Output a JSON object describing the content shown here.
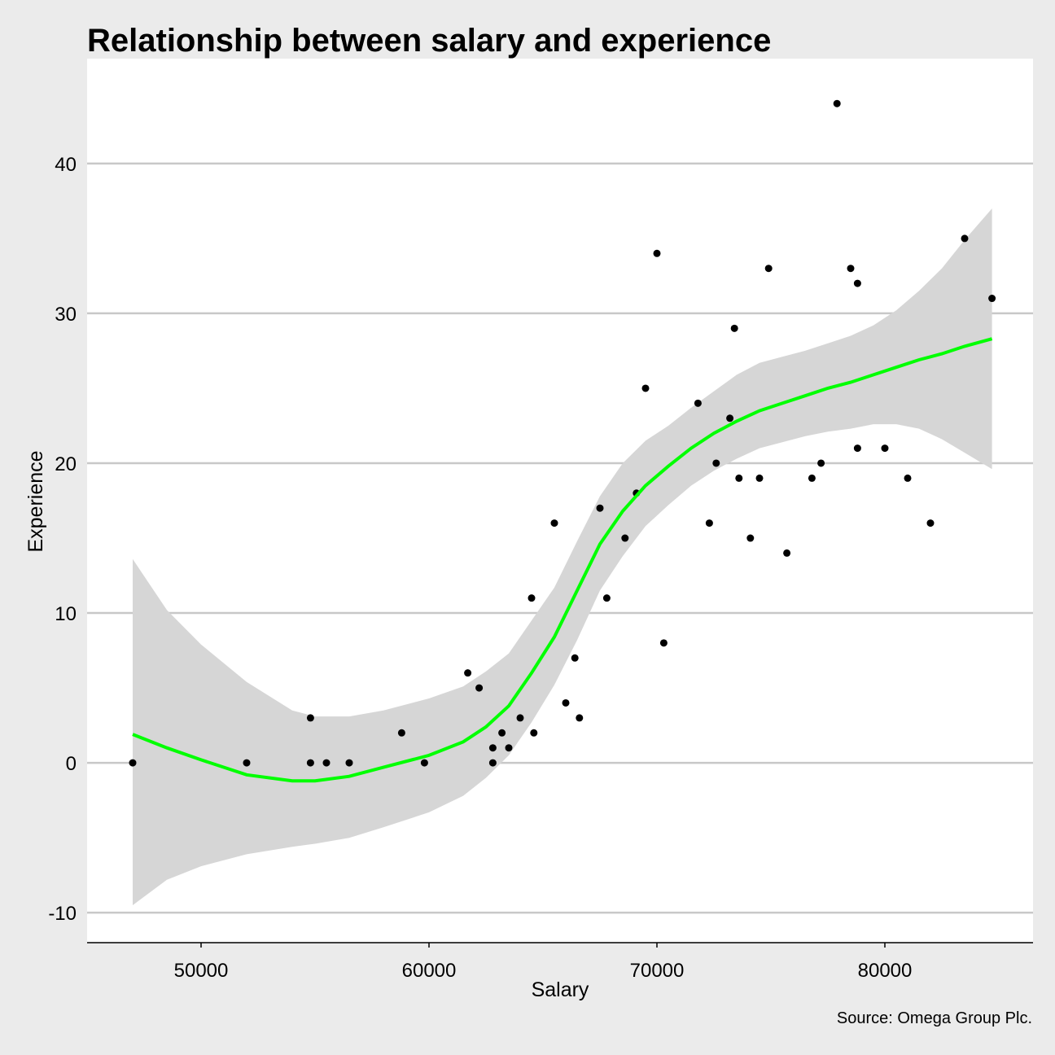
{
  "colors": {
    "background": "#ebebeb",
    "panel": "#ffffff",
    "grid": "#c8c8c8",
    "ribbon": "#d6d6d6",
    "smooth_line": "#00ff00",
    "points": "#000000"
  },
  "chart_data": {
    "type": "scatter",
    "title": "Relationship between salary and experience",
    "xlabel": "Salary",
    "ylabel": "Experience",
    "caption": "Source: Omega Group Plc.",
    "xlim": [
      45000,
      86500
    ],
    "ylim": [
      -12,
      47
    ],
    "x_ticks": [
      50000,
      60000,
      70000,
      80000
    ],
    "y_ticks": [
      -10,
      0,
      10,
      20,
      30,
      40
    ],
    "grid": "horizontal major",
    "points": [
      {
        "x": 47000,
        "y": 0
      },
      {
        "x": 52000,
        "y": 0
      },
      {
        "x": 54800,
        "y": 3
      },
      {
        "x": 54800,
        "y": 0
      },
      {
        "x": 55500,
        "y": 0
      },
      {
        "x": 56500,
        "y": 0
      },
      {
        "x": 58800,
        "y": 2
      },
      {
        "x": 59800,
        "y": 0
      },
      {
        "x": 61700,
        "y": 6
      },
      {
        "x": 62200,
        "y": 5
      },
      {
        "x": 62800,
        "y": 1
      },
      {
        "x": 62800,
        "y": 0
      },
      {
        "x": 63200,
        "y": 2
      },
      {
        "x": 63500,
        "y": 1
      },
      {
        "x": 64000,
        "y": 3
      },
      {
        "x": 64500,
        "y": 11
      },
      {
        "x": 64600,
        "y": 2
      },
      {
        "x": 65500,
        "y": 16
      },
      {
        "x": 66000,
        "y": 4
      },
      {
        "x": 66400,
        "y": 7
      },
      {
        "x": 66600,
        "y": 3
      },
      {
        "x": 67500,
        "y": 17
      },
      {
        "x": 67800,
        "y": 11
      },
      {
        "x": 68600,
        "y": 15
      },
      {
        "x": 69100,
        "y": 18
      },
      {
        "x": 69500,
        "y": 25
      },
      {
        "x": 70000,
        "y": 34
      },
      {
        "x": 70300,
        "y": 8
      },
      {
        "x": 71800,
        "y": 24
      },
      {
        "x": 72300,
        "y": 16
      },
      {
        "x": 72600,
        "y": 20
      },
      {
        "x": 73200,
        "y": 23
      },
      {
        "x": 73400,
        "y": 29
      },
      {
        "x": 73600,
        "y": 19
      },
      {
        "x": 74100,
        "y": 15
      },
      {
        "x": 74500,
        "y": 19
      },
      {
        "x": 74900,
        "y": 33
      },
      {
        "x": 75700,
        "y": 14
      },
      {
        "x": 76800,
        "y": 19
      },
      {
        "x": 77200,
        "y": 20
      },
      {
        "x": 77900,
        "y": 44
      },
      {
        "x": 78500,
        "y": 33
      },
      {
        "x": 78800,
        "y": 32
      },
      {
        "x": 78800,
        "y": 21
      },
      {
        "x": 80000,
        "y": 21
      },
      {
        "x": 81000,
        "y": 19
      },
      {
        "x": 82000,
        "y": 16
      },
      {
        "x": 83500,
        "y": 35
      },
      {
        "x": 84700,
        "y": 31
      }
    ],
    "smooth": {
      "x": [
        47000,
        48500,
        50000,
        52000,
        54000,
        55000,
        56500,
        58000,
        60000,
        61500,
        62500,
        63500,
        64500,
        65500,
        66500,
        67500,
        68500,
        69500,
        70500,
        71500,
        72500,
        73500,
        74500,
        75500,
        76500,
        77500,
        78500,
        79500,
        80500,
        81500,
        82500,
        83500,
        84700
      ],
      "y": [
        1.9,
        1.0,
        0.2,
        -0.8,
        -1.2,
        -1.2,
        -0.9,
        -0.3,
        0.5,
        1.4,
        2.4,
        3.8,
        6.0,
        8.4,
        11.5,
        14.6,
        16.8,
        18.5,
        19.8,
        21.0,
        22.0,
        22.8,
        23.5,
        24.0,
        24.5,
        25.0,
        25.4,
        25.9,
        26.4,
        26.9,
        27.3,
        27.8,
        28.3
      ],
      "ymin": [
        -9.5,
        -7.8,
        -6.9,
        -6.1,
        -5.6,
        -5.4,
        -5.0,
        -4.3,
        -3.3,
        -2.2,
        -1.0,
        0.5,
        2.7,
        5.2,
        8.2,
        11.5,
        13.8,
        15.8,
        17.2,
        18.5,
        19.5,
        20.3,
        21.0,
        21.4,
        21.8,
        22.1,
        22.3,
        22.6,
        22.6,
        22.3,
        21.6,
        20.7,
        19.6
      ],
      "ymax": [
        13.6,
        10.2,
        7.9,
        5.4,
        3.5,
        3.1,
        3.1,
        3.5,
        4.3,
        5.1,
        6.1,
        7.3,
        9.5,
        11.7,
        14.8,
        17.8,
        20.0,
        21.5,
        22.5,
        23.7,
        24.8,
        25.9,
        26.7,
        27.1,
        27.5,
        28.0,
        28.5,
        29.2,
        30.2,
        31.5,
        33.0,
        34.9,
        37.0
      ]
    }
  }
}
